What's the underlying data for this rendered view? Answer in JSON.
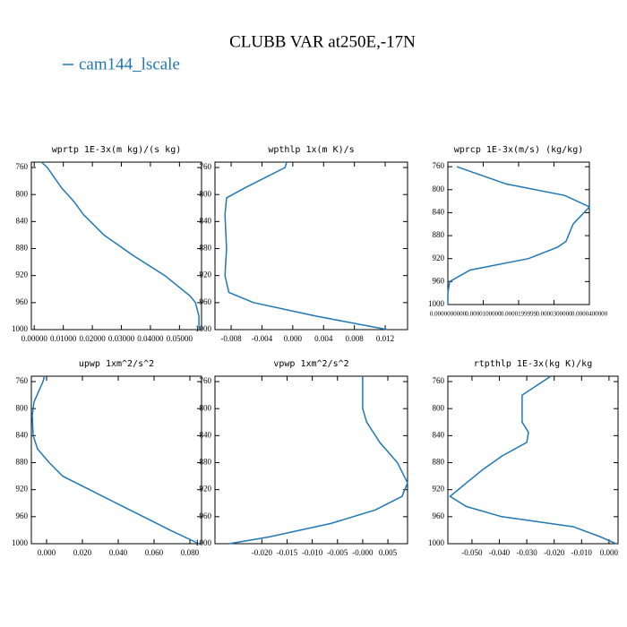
{
  "title": "CLUBB VAR at250E,-17N",
  "legend": {
    "name": "cam144_lscale",
    "color": "#1f77b4"
  },
  "chart_data": [
    {
      "type": "line",
      "title": "wprtp  1E-3x(m kg)/(s kg)",
      "levels": [
        752,
        760,
        790,
        810,
        830,
        860,
        890,
        920,
        950,
        960,
        980,
        1000
      ],
      "values": [
        0.0025,
        0.0045,
        0.0094,
        0.0136,
        0.017,
        0.024,
        0.034,
        0.045,
        0.0536,
        0.0555,
        0.0567,
        0.0567
      ],
      "xlim": [
        -0.001,
        0.0576
      ],
      "ylim": [
        1000,
        752
      ],
      "xticks": [
        {
          "value": 0,
          "label": "0.00000"
        },
        {
          "value": 0.01,
          "label": "0.01000"
        },
        {
          "value": 0.02,
          "label": "0.02000"
        },
        {
          "value": 0.03,
          "label": "0.03000"
        },
        {
          "value": 0.04,
          "label": "0.04000"
        },
        {
          "value": 0.05,
          "label": "0.05000"
        }
      ],
      "yticks": [
        760,
        800,
        840,
        880,
        920,
        960,
        1000
      ]
    },
    {
      "type": "line",
      "title": "wpthlp  1x(m K)/s",
      "levels": [
        752,
        760,
        790,
        805,
        830,
        880,
        920,
        945,
        960,
        980,
        1000
      ],
      "values": [
        -0.0008,
        -0.001,
        -0.0062,
        -0.0086,
        -0.0088,
        -0.0086,
        -0.0088,
        -0.0083,
        -0.0051,
        0.003,
        0.0123
      ],
      "xlim": [
        -0.0101,
        0.0149
      ],
      "ylim": [
        1000,
        752
      ],
      "xticks": [
        -0.008,
        -0.004,
        {
          "value": 0,
          "label": "0.000"
        },
        0.004,
        0.008,
        0.012
      ],
      "yticks": [
        760,
        800,
        840,
        880,
        920,
        960,
        1000
      ]
    },
    {
      "type": "line",
      "title": "wprcp  1E-3x(m/s) (kg/kg)",
      "levels": [
        760,
        790,
        810,
        830,
        860,
        890,
        900,
        920,
        940,
        960,
        980,
        1000
      ],
      "values": [
        2.5e-06,
        1.65e-05,
        3.3e-05,
        4e-05,
        3.54e-05,
        3.34e-05,
        3.1e-05,
        2.28e-05,
        6.3e-06,
        5e-07,
        0,
        0
      ],
      "xlim": [
        0,
        4e-05
      ],
      "ylim": [
        1000,
        752
      ],
      "xticks": [
        {
          "value": 0,
          "label": "0.0000000000"
        },
        {
          "value": 1e-05,
          "label": "0.0000100000"
        },
        {
          "value": 2e-05,
          "label": "0.0000199999"
        },
        {
          "value": 3e-05,
          "label": "0.0000300000"
        },
        {
          "value": 4e-05,
          "label": "0.0000400000"
        }
      ],
      "yticks": [
        760,
        800,
        840,
        880,
        920,
        960,
        1000
      ]
    },
    {
      "type": "line",
      "title": "upwp  1xm^2/s^2",
      "levels": [
        752,
        760,
        790,
        810,
        840,
        860,
        880,
        900,
        920,
        940,
        960,
        980,
        1000
      ],
      "values": [
        -0.0012,
        -0.002,
        -0.007,
        -0.008,
        -0.0075,
        -0.005,
        0.0015,
        0.009,
        0.024,
        0.039,
        0.054,
        0.069,
        0.085
      ],
      "xlim": [
        -0.0085,
        0.0865
      ],
      "ylim": [
        1000,
        752
      ],
      "xticks": [
        {
          "value": 0,
          "label": "0.000"
        },
        {
          "value": 0.02,
          "label": "0.020"
        },
        {
          "value": 0.04,
          "label": "0.040"
        },
        {
          "value": 0.06,
          "label": "0.060"
        },
        {
          "value": 0.08,
          "label": "0.080"
        }
      ],
      "yticks": [
        760,
        800,
        840,
        880,
        920,
        960,
        1000
      ]
    },
    {
      "type": "line",
      "title": "vpwp  1xm^2/s^2",
      "levels": [
        752,
        760,
        800,
        820,
        850,
        880,
        910,
        930,
        950,
        970,
        990,
        1000
      ],
      "values": [
        0,
        0,
        0,
        0.0008,
        0.0034,
        0.0069,
        0.0089,
        0.0078,
        0.0025,
        -0.0063,
        -0.0186,
        -0.0265
      ],
      "xlim": [
        -0.0293,
        0.0089
      ],
      "ylim": [
        1000,
        752
      ],
      "xticks": [
        {
          "value": -0.02,
          "label": "-0.020"
        },
        {
          "value": -0.015,
          "label": "-0.015"
        },
        {
          "value": -0.01,
          "label": "-0.010"
        },
        {
          "value": -0.005,
          "label": "-0.005"
        },
        {
          "value": 0,
          "label": "-0.000"
        },
        {
          "value": 0.005,
          "label": "0.005"
        }
      ],
      "yticks": [
        760,
        800,
        840,
        880,
        920,
        960,
        1000
      ]
    },
    {
      "type": "line",
      "title": "rtpthlp  1E-3x(kg K)/kg",
      "levels": [
        752,
        780,
        800,
        820,
        835,
        850,
        870,
        890,
        910,
        930,
        945,
        960,
        975,
        990,
        1000
      ],
      "values": [
        -0.0212,
        -0.0317,
        -0.0317,
        -0.0317,
        -0.0294,
        -0.03,
        -0.039,
        -0.046,
        -0.052,
        -0.058,
        -0.052,
        -0.0392,
        -0.013,
        -0.003,
        0.0026
      ],
      "xlim": [
        -0.0588,
        0.0033
      ],
      "ylim": [
        1000,
        752
      ],
      "xticks": [
        {
          "value": -0.05,
          "label": "-0.050"
        },
        {
          "value": -0.04,
          "label": "-0.040"
        },
        {
          "value": -0.03,
          "label": "-0.030"
        },
        {
          "value": -0.02,
          "label": "-0.020"
        },
        {
          "value": -0.01,
          "label": "-0.010"
        },
        {
          "value": 0,
          "label": "0.000"
        }
      ],
      "yticks": [
        760,
        800,
        840,
        880,
        920,
        960,
        1000
      ]
    }
  ]
}
